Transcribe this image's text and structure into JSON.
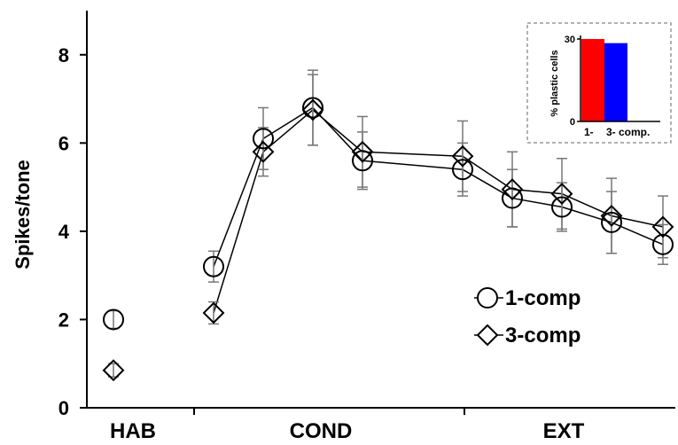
{
  "chart_data": [
    {
      "type": "line",
      "ylabel": "Spikes/tone",
      "ylim": [
        0,
        9
      ],
      "yticks": [
        0,
        2,
        4,
        6,
        8
      ],
      "phases": [
        "HAB",
        "COND",
        "EXT"
      ],
      "series": [
        {
          "name": "1-comp",
          "marker": "circle",
          "points": [
            {
              "phase": "HAB",
              "y": 2.0,
              "err": 0.2
            },
            {
              "phase": "COND",
              "y": 3.2,
              "err": 0.35
            },
            {
              "phase": "COND",
              "y": 6.1,
              "err": 0.7
            },
            {
              "phase": "COND",
              "y": 6.8,
              "err": 0.85
            },
            {
              "phase": "COND",
              "y": 5.6,
              "err": 0.65
            },
            {
              "phase": "EXT",
              "y": 5.4,
              "err": 0.6
            },
            {
              "phase": "EXT",
              "y": 4.75,
              "err": 0.65
            },
            {
              "phase": "EXT",
              "y": 4.55,
              "err": 0.55
            },
            {
              "phase": "EXT",
              "y": 4.2,
              "err": 0.7
            },
            {
              "phase": "EXT",
              "y": 3.7,
              "err": 0.45
            }
          ]
        },
        {
          "name": "3-comp",
          "marker": "diamond",
          "points": [
            {
              "phase": "HAB",
              "y": 0.85,
              "err": 0.15
            },
            {
              "phase": "COND",
              "y": 2.15,
              "err": 0.25
            },
            {
              "phase": "COND",
              "y": 5.8,
              "err": 0.55
            },
            {
              "phase": "COND",
              "y": 6.75,
              "err": 0.8
            },
            {
              "phase": "COND",
              "y": 5.8,
              "err": 0.8
            },
            {
              "phase": "EXT",
              "y": 5.7,
              "err": 0.8
            },
            {
              "phase": "EXT",
              "y": 4.95,
              "err": 0.85
            },
            {
              "phase": "EXT",
              "y": 4.85,
              "err": 0.8
            },
            {
              "phase": "EXT",
              "y": 4.35,
              "err": 0.85
            },
            {
              "phase": "EXT",
              "y": 4.1,
              "err": 0.7
            }
          ]
        }
      ],
      "colors": {
        "line": "#000000",
        "errorbar": "#777777"
      }
    },
    {
      "type": "bar",
      "ylabel": "% plastic cells",
      "ylim": [
        0,
        30
      ],
      "yticks": [
        0,
        30
      ],
      "categories": [
        "1-",
        "3- comp."
      ],
      "values": [
        30,
        28.5
      ],
      "colors": [
        "#ff0000",
        "#0000ff"
      ]
    }
  ]
}
